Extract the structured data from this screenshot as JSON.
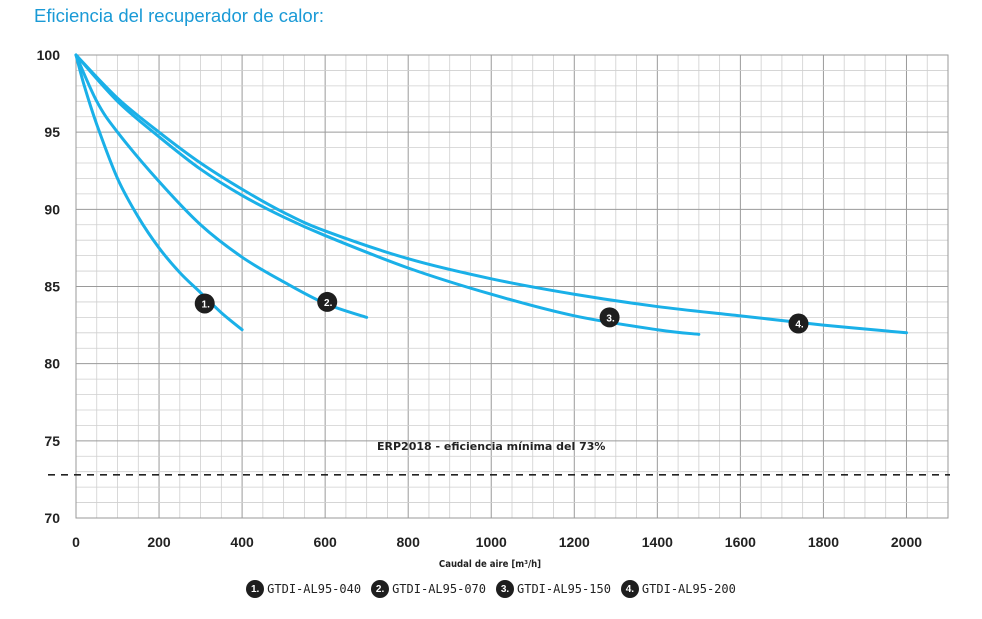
{
  "title": "Eficiencia del recuperador de calor:",
  "colors": {
    "series": "#1ab0e8",
    "title": "#1a9ad6",
    "grid_major": "#9a9a9a",
    "grid_minor": "#cfcfcf",
    "marker": "#1e1e1e",
    "threshold": "#222222"
  },
  "chart_data": {
    "type": "line",
    "xlabel": "Caudal de aire [m³/h]",
    "ylabel": "",
    "xlim": [
      0,
      2100
    ],
    "ylim": [
      70,
      100
    ],
    "x_ticks": [
      "0",
      "200",
      "400",
      "600",
      "800",
      "1000",
      "1200",
      "1400",
      "1600",
      "1800",
      "2000"
    ],
    "y_ticks": [
      "100",
      "95",
      "90",
      "85",
      "80",
      "75",
      "70"
    ],
    "grid": true,
    "threshold": {
      "y": 72.8,
      "style": "dashed",
      "label": "ERP2018 - eficiencia mínima del 73%"
    },
    "series": [
      {
        "name": "GTDI-AL95-040",
        "marker_label": "1.",
        "marker": [
          310,
          83.9
        ],
        "x": [
          0,
          20,
          50,
          100,
          150,
          200,
          250,
          300,
          350,
          400
        ],
        "y": [
          100,
          98.0,
          95.5,
          92.0,
          89.5,
          87.5,
          85.9,
          84.6,
          83.3,
          82.2
        ]
      },
      {
        "name": "GTDI-AL95-070",
        "marker_label": "2.",
        "marker": [
          605,
          84.0
        ],
        "x": [
          0,
          50,
          100,
          200,
          300,
          400,
          500,
          600,
          700
        ],
        "y": [
          100,
          97.0,
          95.0,
          91.8,
          89.0,
          86.9,
          85.3,
          83.9,
          83.0
        ]
      },
      {
        "name": "GTDI-AL95-150",
        "marker_label": "3.",
        "marker": [
          1285,
          83.0
        ],
        "x": [
          0,
          100,
          200,
          300,
          400,
          500,
          600,
          800,
          1000,
          1200,
          1400,
          1500
        ],
        "y": [
          100,
          97.0,
          94.7,
          92.6,
          90.9,
          89.5,
          88.3,
          86.2,
          84.5,
          83.1,
          82.2,
          81.9
        ]
      },
      {
        "name": "GTDI-AL95-200",
        "marker_label": "4.",
        "marker": [
          1740,
          82.6
        ],
        "x": [
          0,
          100,
          200,
          300,
          400,
          500,
          600,
          800,
          1000,
          1200,
          1400,
          1600,
          1800,
          2000
        ],
        "y": [
          100,
          97.2,
          95.0,
          93.0,
          91.3,
          89.8,
          88.6,
          86.8,
          85.5,
          84.5,
          83.7,
          83.1,
          82.5,
          82.0
        ]
      }
    ]
  },
  "legend": [
    {
      "badge": "1.",
      "label": "GTDI-AL95-040"
    },
    {
      "badge": "2.",
      "label": "GTDI-AL95-070"
    },
    {
      "badge": "3.",
      "label": "GTDI-AL95-150"
    },
    {
      "badge": "4.",
      "label": "GTDI-AL95-200"
    }
  ]
}
